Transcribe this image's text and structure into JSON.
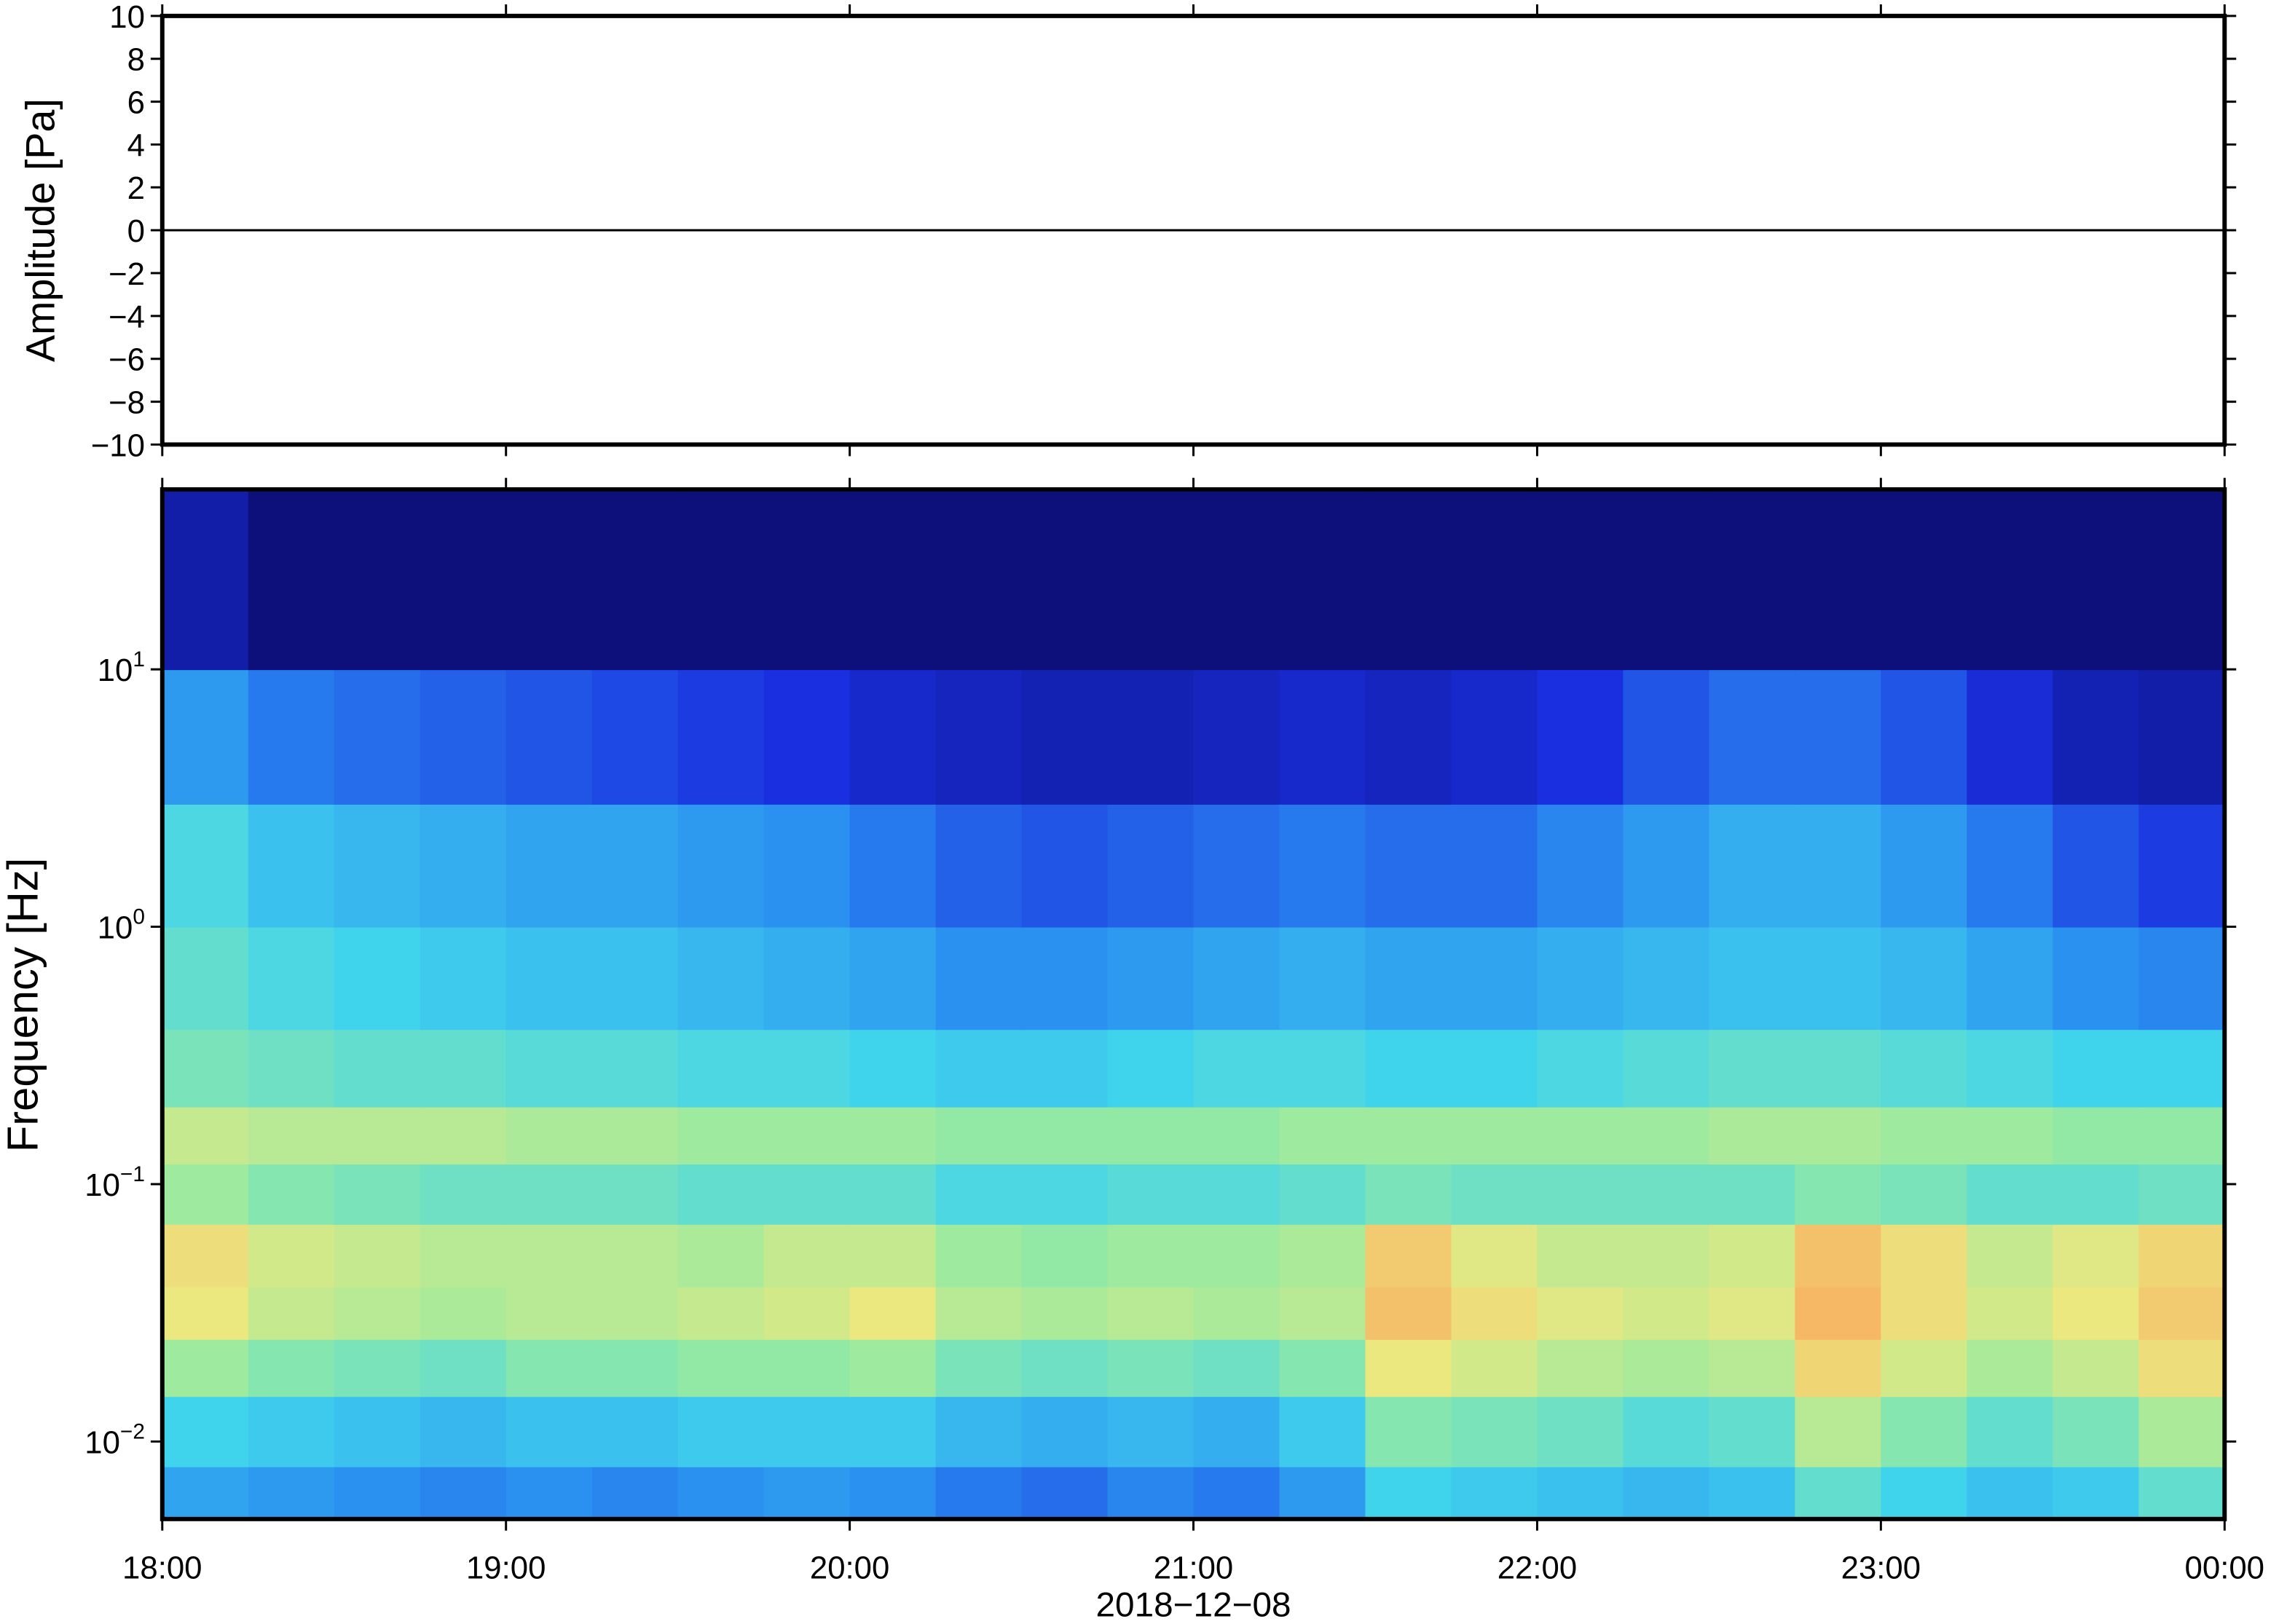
{
  "chart_data": [
    {
      "type": "line",
      "ylabel": "Amplitude [Pa]",
      "xlim": [
        18,
        24
      ],
      "xticks": [
        {
          "value": 18,
          "label": "18:00"
        },
        {
          "value": 19,
          "label": "19:00"
        },
        {
          "value": 20,
          "label": "20:00"
        },
        {
          "value": 21,
          "label": "21:00"
        },
        {
          "value": 22,
          "label": "22:00"
        },
        {
          "value": 23,
          "label": "23:00"
        },
        {
          "value": 24,
          "label": "00:00"
        }
      ],
      "ylim": [
        -10,
        10
      ],
      "yticks": [
        {
          "value": -10,
          "label": "−10"
        },
        {
          "value": -8,
          "label": "−8"
        },
        {
          "value": -6,
          "label": "−6"
        },
        {
          "value": -4,
          "label": "−4"
        },
        {
          "value": -2,
          "label": "−2"
        },
        0,
        2,
        4,
        6,
        8,
        10
      ],
      "series": [
        {
          "color": "#000000",
          "x": [
            18,
            18.5,
            19,
            19.5,
            20,
            20.5,
            21,
            21.5,
            22,
            22.5,
            23,
            23.5,
            24
          ],
          "values": [
            0,
            0,
            0,
            0,
            0,
            0,
            0,
            0,
            0,
            0,
            0,
            0,
            0
          ]
        }
      ]
    },
    {
      "type": "heatmap",
      "ylabel": "Frequency [Hz]",
      "xlabel": "2018−12−08",
      "xlim": [
        18,
        24
      ],
      "xticks": [
        {
          "value": 18,
          "label": "18:00"
        },
        {
          "value": 19,
          "label": "19:00"
        },
        {
          "value": 20,
          "label": "20:00"
        },
        {
          "value": 21,
          "label": "21:00"
        },
        {
          "value": 22,
          "label": "22:00"
        },
        {
          "value": 23,
          "label": "23:00"
        },
        {
          "value": 24,
          "label": "00:00"
        }
      ],
      "ylim": [
        0.005,
        50
      ],
      "log_y": true,
      "yticks": [
        {
          "value": 0.01,
          "label": "10",
          "exponent": "−2"
        },
        {
          "value": 0.1,
          "label": "10",
          "exponent": "−1"
        },
        {
          "value": 1,
          "label": "10",
          "exponent": "0"
        },
        {
          "value": 10,
          "label": "10",
          "exponent": "1"
        }
      ],
      "x_bins": [
        18,
        18.25,
        18.5,
        18.75,
        19,
        19.25,
        19.5,
        19.75,
        20,
        20.25,
        20.5,
        20.75,
        21,
        21.25,
        21.5,
        21.75,
        22,
        22.25,
        22.5,
        22.75,
        23,
        23.25,
        23.5,
        23.75,
        24
      ],
      "y_bins": [
        0.005,
        0.008,
        0.015,
        0.025,
        0.04,
        0.07,
        0.12,
        0.2,
        0.4,
        1,
        3,
        10,
        50
      ],
      "colormap": {
        "stops": [
          0,
          20,
          35,
          50,
          65,
          78,
          90
        ],
        "colors": [
          "#0c0c70",
          "#1a30e0",
          "#2a8cf0",
          "#40d4ec",
          "#98eaa0",
          "#ece880",
          "#f8ae60"
        ]
      },
      "z": [
        [
          40,
          38,
          36,
          34,
          36,
          34,
          36,
          38,
          36,
          32,
          30,
          34,
          32,
          38,
          50,
          48,
          46,
          44,
          46,
          56,
          50,
          46,
          48,
          56
        ],
        [
          50,
          48,
          46,
          44,
          46,
          46,
          48,
          48,
          48,
          44,
          42,
          44,
          42,
          48,
          62,
          60,
          58,
          54,
          56,
          70,
          62,
          56,
          60,
          68
        ],
        [
          66,
          62,
          60,
          58,
          62,
          62,
          64,
          64,
          66,
          60,
          58,
          60,
          58,
          62,
          78,
          74,
          70,
          68,
          70,
          82,
          74,
          68,
          72,
          80
        ],
        [
          78,
          72,
          70,
          68,
          70,
          70,
          72,
          74,
          78,
          70,
          68,
          70,
          68,
          70,
          86,
          80,
          76,
          74,
          76,
          88,
          80,
          74,
          78,
          84
        ],
        [
          80,
          74,
          72,
          70,
          70,
          70,
          68,
          72,
          72,
          66,
          64,
          66,
          66,
          68,
          84,
          76,
          72,
          72,
          74,
          86,
          80,
          72,
          76,
          82
        ],
        [
          66,
          62,
          60,
          58,
          58,
          58,
          56,
          56,
          56,
          52,
          52,
          54,
          54,
          56,
          60,
          58,
          58,
          58,
          58,
          62,
          60,
          56,
          56,
          58
        ],
        [
          72,
          70,
          70,
          70,
          68,
          68,
          66,
          66,
          66,
          64,
          64,
          64,
          64,
          66,
          66,
          66,
          66,
          66,
          68,
          68,
          66,
          66,
          64,
          64
        ],
        [
          60,
          58,
          56,
          56,
          54,
          54,
          52,
          52,
          50,
          48,
          48,
          50,
          52,
          52,
          50,
          50,
          52,
          54,
          56,
          56,
          54,
          52,
          50,
          50
        ],
        [
          56,
          52,
          50,
          48,
          46,
          46,
          44,
          42,
          40,
          36,
          36,
          38,
          40,
          42,
          40,
          40,
          42,
          44,
          46,
          46,
          44,
          40,
          36,
          34
        ],
        [
          52,
          46,
          44,
          42,
          40,
          40,
          38,
          36,
          32,
          28,
          26,
          28,
          30,
          32,
          30,
          30,
          34,
          38,
          42,
          42,
          38,
          32,
          26,
          22
        ],
        [
          38,
          32,
          30,
          28,
          26,
          24,
          22,
          20,
          16,
          14,
          12,
          12,
          14,
          16,
          14,
          16,
          20,
          26,
          30,
          30,
          26,
          18,
          12,
          10
        ],
        [
          10,
          2,
          2,
          2,
          2,
          2,
          2,
          2,
          2,
          2,
          2,
          2,
          2,
          2,
          2,
          2,
          2,
          2,
          2,
          2,
          2,
          2,
          2,
          2
        ]
      ]
    }
  ]
}
